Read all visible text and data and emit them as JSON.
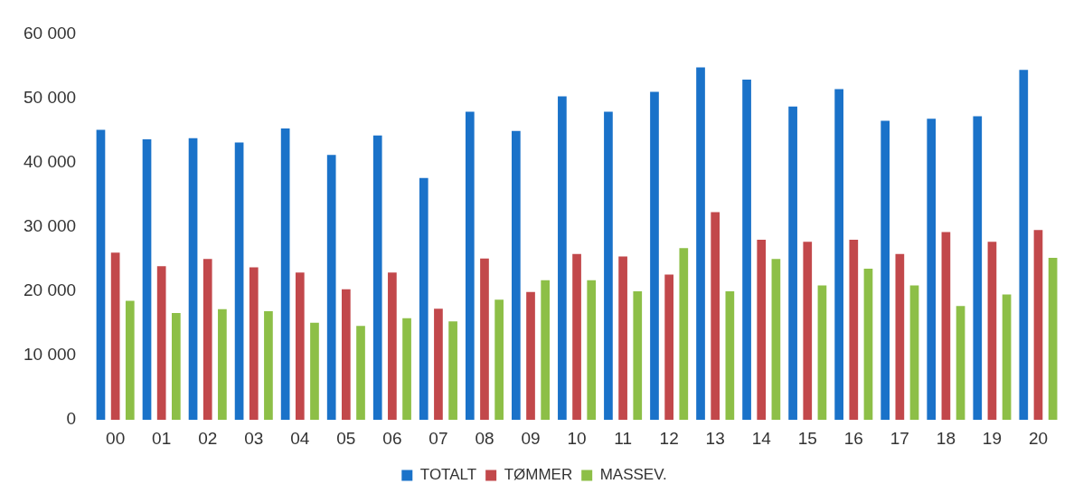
{
  "chart_data": {
    "type": "bar",
    "categories": [
      "00",
      "01",
      "02",
      "03",
      "04",
      "05",
      "06",
      "07",
      "08",
      "09",
      "10",
      "11",
      "12",
      "13",
      "14",
      "15",
      "16",
      "17",
      "18",
      "19",
      "20"
    ],
    "series": [
      {
        "name": "TOTALT",
        "color": "#1a72c9",
        "values": [
          45100,
          43600,
          43800,
          43100,
          45300,
          41200,
          44200,
          37600,
          47900,
          44900,
          50300,
          47900,
          51000,
          54800,
          52900,
          48700,
          51400,
          46500,
          46800,
          47200,
          54400
        ]
      },
      {
        "name": "TØMMER",
        "color": "#c2484b",
        "values": [
          26000,
          23900,
          25000,
          23700,
          22900,
          20300,
          22900,
          17300,
          25100,
          19900,
          25800,
          25400,
          22600,
          32300,
          28000,
          27700,
          28000,
          25800,
          29200,
          27700,
          29500
        ]
      },
      {
        "name": "MASSEV.",
        "color": "#8dbf47",
        "values": [
          18500,
          16600,
          17200,
          16900,
          15100,
          14600,
          15800,
          15300,
          18700,
          21700,
          21700,
          20000,
          26700,
          20000,
          25000,
          20900,
          23500,
          20900,
          17700,
          19500,
          25200
        ]
      }
    ],
    "ylim": [
      0,
      60000
    ],
    "yticks": [
      {
        "value": 0,
        "label": "0"
      },
      {
        "value": 10000,
        "label": "10 000"
      },
      {
        "value": 20000,
        "label": "20 000"
      },
      {
        "value": 30000,
        "label": "30 000"
      },
      {
        "value": 40000,
        "label": "40 000"
      },
      {
        "value": 50000,
        "label": "50 000"
      },
      {
        "value": 60000,
        "label": "60 000"
      }
    ],
    "grid": false,
    "legend": "bottom"
  }
}
